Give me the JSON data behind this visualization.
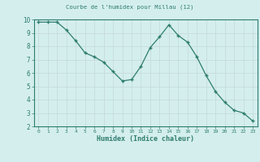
{
  "x": [
    0,
    1,
    2,
    3,
    4,
    5,
    6,
    7,
    8,
    9,
    10,
    11,
    12,
    13,
    14,
    15,
    16,
    17,
    18,
    19,
    20,
    21,
    22,
    23
  ],
  "y": [
    9.8,
    9.8,
    9.8,
    9.2,
    8.4,
    7.5,
    7.2,
    6.8,
    6.1,
    5.4,
    5.5,
    6.5,
    7.9,
    8.7,
    9.6,
    8.8,
    8.3,
    7.2,
    5.8,
    4.6,
    3.8,
    3.2,
    3.0,
    2.4
  ],
  "title": "Courbe de l'humidex pour Millau (12)",
  "xlabel": "Humidex (Indice chaleur)",
  "ylabel": "",
  "xlim": [
    -0.5,
    23.5
  ],
  "ylim": [
    2,
    10
  ],
  "yticks": [
    2,
    3,
    4,
    5,
    6,
    7,
    8,
    9,
    10
  ],
  "xticks": [
    0,
    1,
    2,
    3,
    4,
    5,
    6,
    7,
    8,
    9,
    10,
    11,
    12,
    13,
    14,
    15,
    16,
    17,
    18,
    19,
    20,
    21,
    22,
    23
  ],
  "line_color": "#2e7d6e",
  "marker_color": "#2e7d6e",
  "bg_color": "#d4eeee",
  "grid_color": "#c8dcdc",
  "axis_label_color": "#2e7d6e",
  "tick_label_color": "#2e7d6e",
  "spine_color": "#2e7d6e"
}
